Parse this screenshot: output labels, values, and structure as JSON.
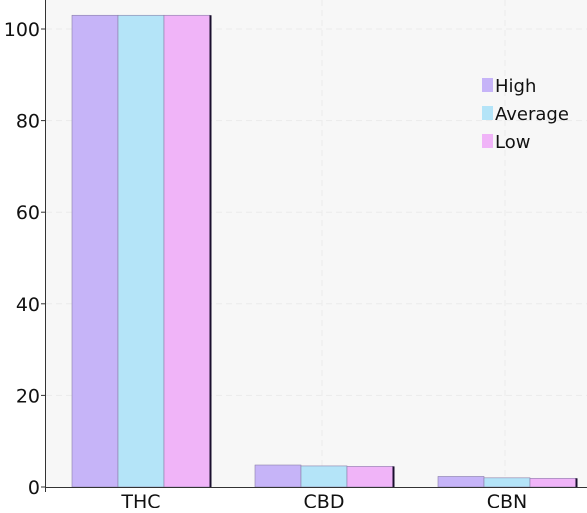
{
  "chart_data": {
    "type": "bar",
    "categories": [
      "THC",
      "CBD",
      "CBN"
    ],
    "series": [
      {
        "name": "High",
        "color": "#c6b4f8",
        "values": [
          103,
          4.8,
          2.3
        ]
      },
      {
        "name": "Average",
        "color": "#b4e4f8",
        "values": [
          103,
          4.6,
          2.0
        ]
      },
      {
        "name": "Low",
        "color": "#f0b4f8",
        "values": [
          103,
          4.5,
          1.9
        ]
      }
    ],
    "title": "",
    "xlabel": "",
    "ylabel": "",
    "ylim": [
      0,
      100
    ],
    "yticks": [
      0,
      20,
      40,
      60,
      80,
      100
    ],
    "grid": true,
    "legend_position": "top-right",
    "background": "#f7f7f7"
  }
}
